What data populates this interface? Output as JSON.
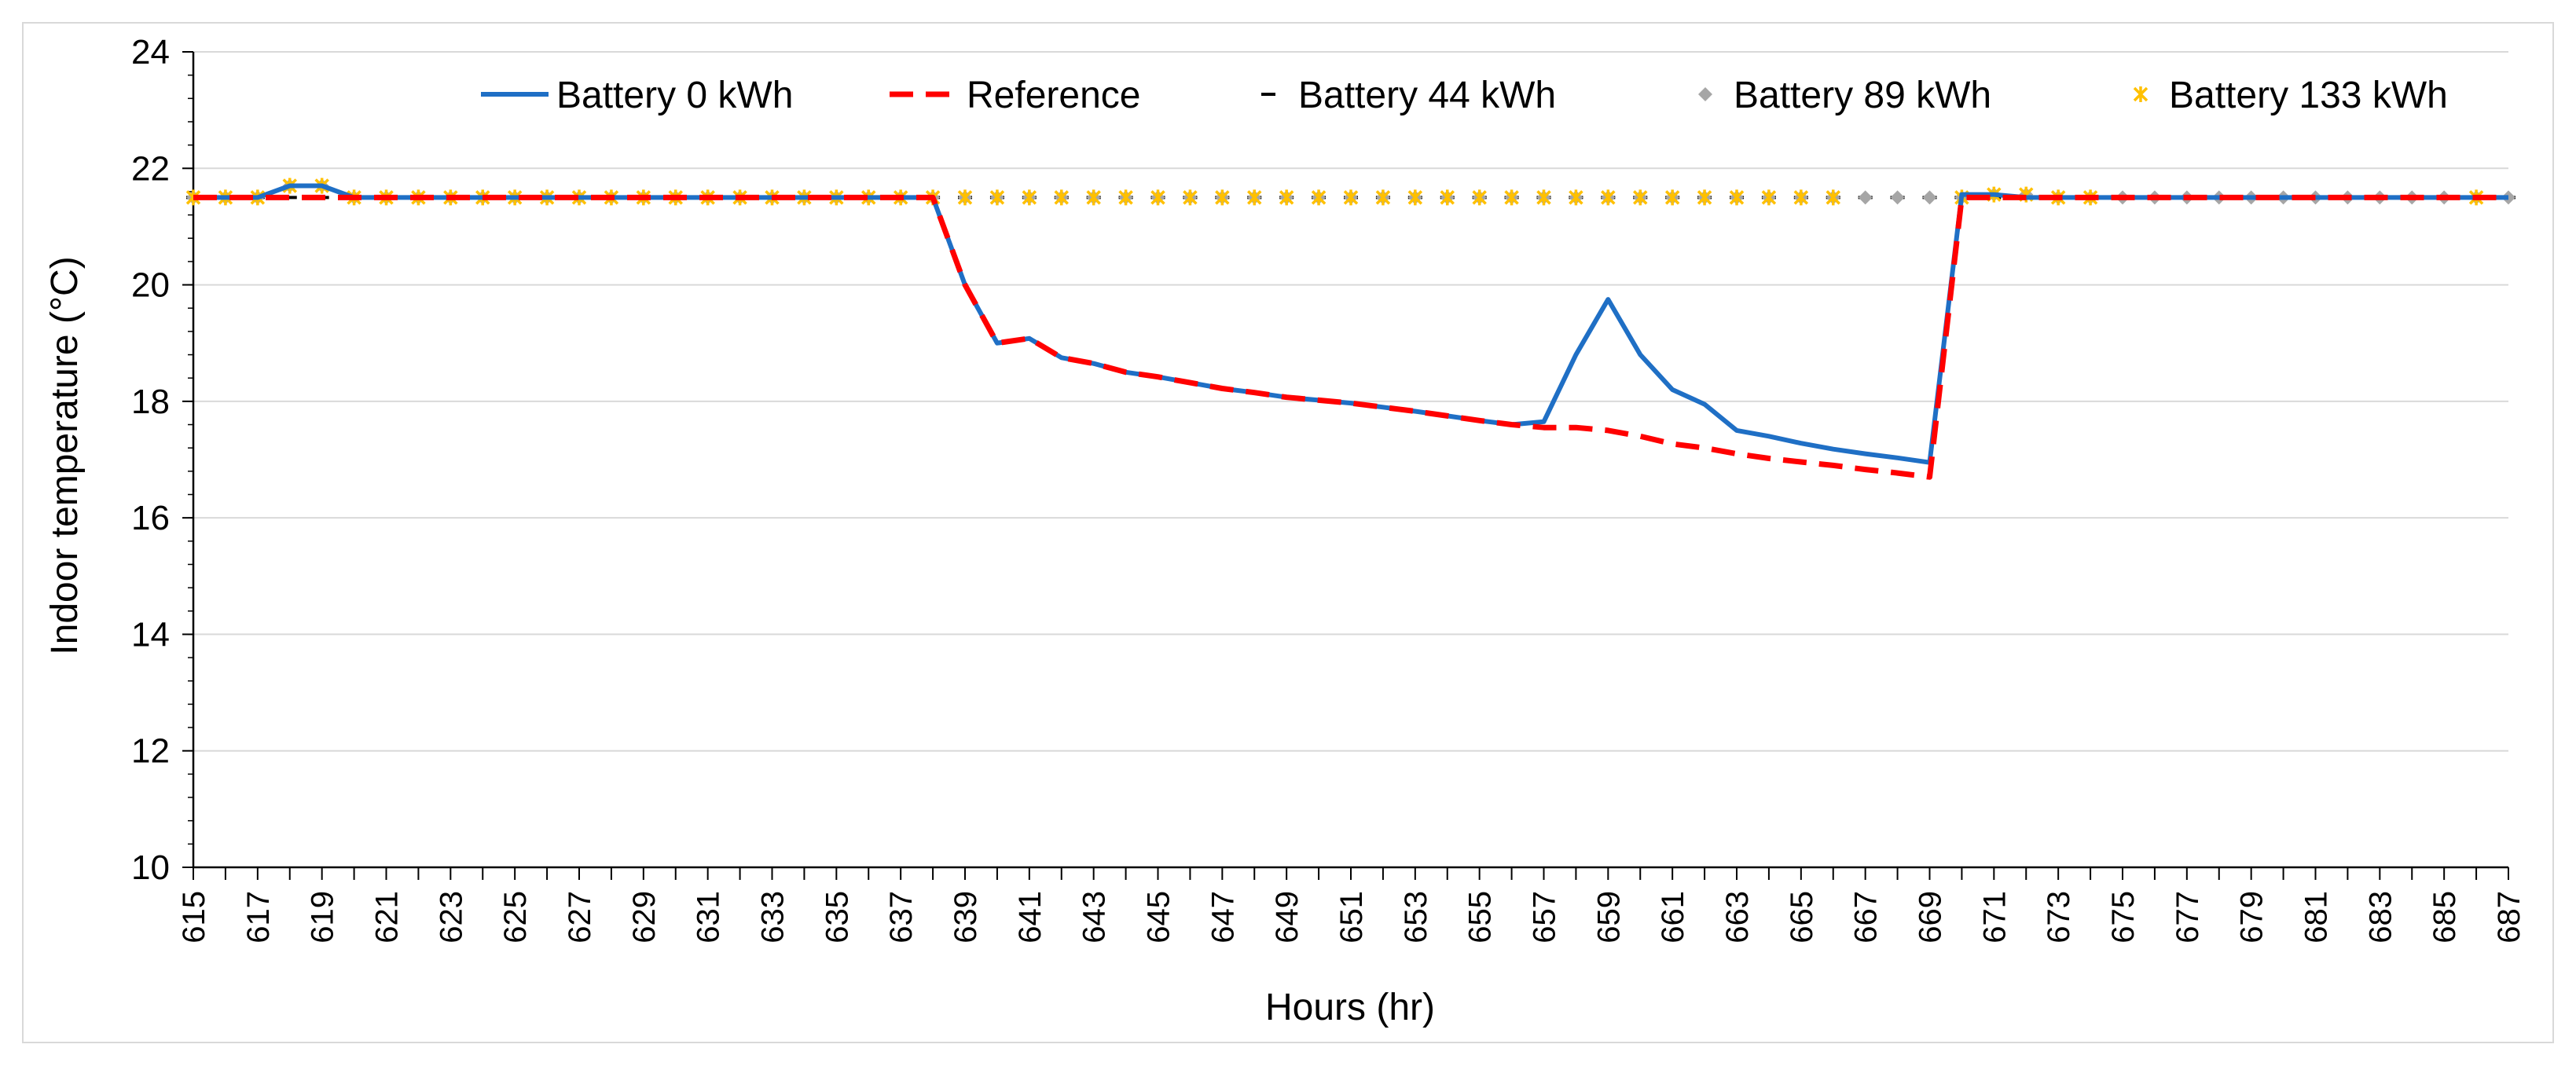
{
  "chart_data": {
    "type": "line",
    "title": "",
    "xlabel": "Hours (hr)",
    "ylabel": "Indoor temperature (°C)",
    "xlim": [
      615,
      687
    ],
    "ylim": [
      10,
      24
    ],
    "yticks": [
      10,
      12,
      14,
      16,
      18,
      20,
      22,
      24
    ],
    "xtick_start": 615,
    "xtick_end": 687,
    "xtick_step": 2,
    "grid": "horizontal",
    "legend_position": "top-right",
    "series": [
      {
        "name": "Battery 0 kWh",
        "style": "solid-line",
        "color": "#1f6fc5",
        "x_start": 615,
        "values": [
          21.5,
          21.5,
          21.5,
          21.7,
          21.7,
          21.5,
          21.5,
          21.5,
          21.5,
          21.5,
          21.5,
          21.5,
          21.5,
          21.5,
          21.5,
          21.5,
          21.5,
          21.5,
          21.5,
          21.5,
          21.5,
          21.5,
          21.5,
          21.5,
          20.0,
          19.0,
          19.08,
          18.75,
          18.65,
          18.5,
          18.42,
          18.32,
          18.22,
          18.15,
          18.07,
          18.02,
          17.97,
          17.9,
          17.83,
          17.75,
          17.67,
          17.6,
          17.65,
          18.8,
          19.75,
          18.8,
          18.2,
          17.95,
          17.5,
          17.4,
          17.28,
          17.18,
          17.1,
          17.03,
          16.95,
          21.55,
          21.55,
          21.5,
          21.5,
          21.5,
          21.5,
          21.5,
          21.5,
          21.5,
          21.5,
          21.5,
          21.5,
          21.5,
          21.5,
          21.5,
          21.5,
          21.5,
          21.5
        ]
      },
      {
        "name": "Reference",
        "style": "dashed-line",
        "color": "#ff0000",
        "x_start": 615,
        "values": [
          21.5,
          21.5,
          21.5,
          21.5,
          21.5,
          21.5,
          21.5,
          21.5,
          21.5,
          21.5,
          21.5,
          21.5,
          21.5,
          21.5,
          21.5,
          21.5,
          21.5,
          21.5,
          21.5,
          21.5,
          21.5,
          21.5,
          21.5,
          21.5,
          20.0,
          19.0,
          19.08,
          18.75,
          18.65,
          18.5,
          18.42,
          18.32,
          18.22,
          18.15,
          18.07,
          18.02,
          17.97,
          17.9,
          17.83,
          17.75,
          17.67,
          17.6,
          17.55,
          17.55,
          17.5,
          17.4,
          17.27,
          17.2,
          17.1,
          17.02,
          16.96,
          16.9,
          16.83,
          16.77,
          16.7,
          21.5,
          21.5,
          21.5,
          21.5,
          21.5,
          21.5,
          21.5,
          21.5,
          21.5,
          21.5,
          21.5,
          21.5,
          21.5,
          21.5,
          21.5,
          21.5,
          21.5,
          21.5
        ]
      },
      {
        "name": "Battery 44 kWh",
        "style": "dash-marker",
        "color": "#000000",
        "x": [
          615,
          616,
          617,
          618,
          619,
          620,
          621,
          622,
          623,
          624,
          625,
          626,
          627,
          628,
          629,
          630,
          631,
          632,
          633,
          634,
          635,
          636,
          637,
          638,
          639,
          640,
          641,
          642,
          643,
          644,
          645,
          646,
          647,
          648,
          649,
          650,
          651,
          652,
          653,
          654,
          655,
          656,
          657,
          658,
          659,
          660,
          661,
          662,
          663,
          664,
          665,
          666,
          667,
          668,
          669,
          670,
          671,
          672,
          673,
          674,
          675,
          676,
          677,
          678,
          679,
          680,
          681,
          682,
          683,
          684,
          685,
          686,
          687
        ],
        "values": [
          21.5,
          21.5,
          21.5,
          21.5,
          21.5,
          21.5,
          21.5,
          21.5,
          21.5,
          21.5,
          21.5,
          21.5,
          21.5,
          21.5,
          21.5,
          21.5,
          21.5,
          21.5,
          21.5,
          21.5,
          21.5,
          21.5,
          21.5,
          21.5,
          21.5,
          21.5,
          21.5,
          21.5,
          21.5,
          21.5,
          21.5,
          21.5,
          21.5,
          21.5,
          21.5,
          21.5,
          21.5,
          21.5,
          21.5,
          21.5,
          21.5,
          21.5,
          21.5,
          21.5,
          21.5,
          21.5,
          21.5,
          21.5,
          21.5,
          21.5,
          21.5,
          21.5,
          21.5,
          21.5,
          21.5,
          21.5,
          21.5,
          21.5,
          21.5,
          21.5,
          21.5,
          21.5,
          21.5,
          21.5,
          21.5,
          21.5,
          21.5,
          21.5,
          21.5,
          21.5,
          21.5,
          21.5,
          21.5
        ]
      },
      {
        "name": "Battery 89 kWh",
        "style": "diamond-marker",
        "color": "#a6a6a6",
        "x": [
          615,
          616,
          617,
          618,
          619,
          620,
          621,
          622,
          623,
          624,
          625,
          626,
          627,
          628,
          629,
          630,
          631,
          632,
          633,
          634,
          635,
          636,
          637,
          638,
          639,
          640,
          641,
          642,
          643,
          644,
          645,
          646,
          647,
          648,
          649,
          650,
          651,
          652,
          653,
          654,
          655,
          656,
          657,
          658,
          659,
          660,
          661,
          662,
          663,
          664,
          665,
          666,
          667,
          668,
          669,
          670,
          671,
          672,
          673,
          674,
          675,
          676,
          677,
          678,
          679,
          680,
          681,
          682,
          683,
          684,
          685,
          686,
          687
        ],
        "values": [
          21.5,
          21.5,
          21.5,
          21.7,
          21.7,
          21.5,
          21.5,
          21.5,
          21.5,
          21.5,
          21.5,
          21.5,
          21.5,
          21.5,
          21.5,
          21.5,
          21.5,
          21.5,
          21.5,
          21.5,
          21.5,
          21.5,
          21.5,
          21.5,
          21.5,
          21.5,
          21.5,
          21.5,
          21.5,
          21.5,
          21.5,
          21.5,
          21.5,
          21.5,
          21.5,
          21.5,
          21.5,
          21.5,
          21.5,
          21.5,
          21.5,
          21.5,
          21.5,
          21.5,
          21.5,
          21.5,
          21.5,
          21.5,
          21.5,
          21.5,
          21.5,
          21.5,
          21.5,
          21.5,
          21.5,
          21.5,
          21.55,
          21.55,
          21.5,
          21.5,
          21.5,
          21.5,
          21.5,
          21.5,
          21.5,
          21.5,
          21.5,
          21.5,
          21.5,
          21.5,
          21.5,
          21.5,
          21.5
        ]
      },
      {
        "name": "Battery 133 kWh",
        "style": "star-marker",
        "color": "#ffc000",
        "x": [
          615,
          616,
          617,
          618,
          619,
          620,
          621,
          622,
          623,
          624,
          625,
          626,
          627,
          628,
          629,
          630,
          631,
          632,
          633,
          634,
          635,
          636,
          637,
          638,
          639,
          640,
          641,
          642,
          643,
          644,
          645,
          646,
          647,
          648,
          649,
          650,
          651,
          652,
          653,
          654,
          655,
          656,
          657,
          658,
          659,
          660,
          661,
          662,
          663,
          664,
          665,
          666,
          670,
          671,
          672,
          673,
          674,
          686
        ],
        "values": [
          21.5,
          21.5,
          21.5,
          21.7,
          21.7,
          21.5,
          21.5,
          21.5,
          21.5,
          21.5,
          21.5,
          21.5,
          21.5,
          21.5,
          21.5,
          21.5,
          21.5,
          21.5,
          21.5,
          21.5,
          21.5,
          21.5,
          21.5,
          21.5,
          21.5,
          21.5,
          21.5,
          21.5,
          21.5,
          21.5,
          21.5,
          21.5,
          21.5,
          21.5,
          21.5,
          21.5,
          21.5,
          21.5,
          21.5,
          21.5,
          21.5,
          21.5,
          21.5,
          21.5,
          21.5,
          21.5,
          21.5,
          21.5,
          21.5,
          21.5,
          21.5,
          21.5,
          21.5,
          21.55,
          21.55,
          21.5,
          21.5,
          21.5
        ]
      }
    ]
  }
}
